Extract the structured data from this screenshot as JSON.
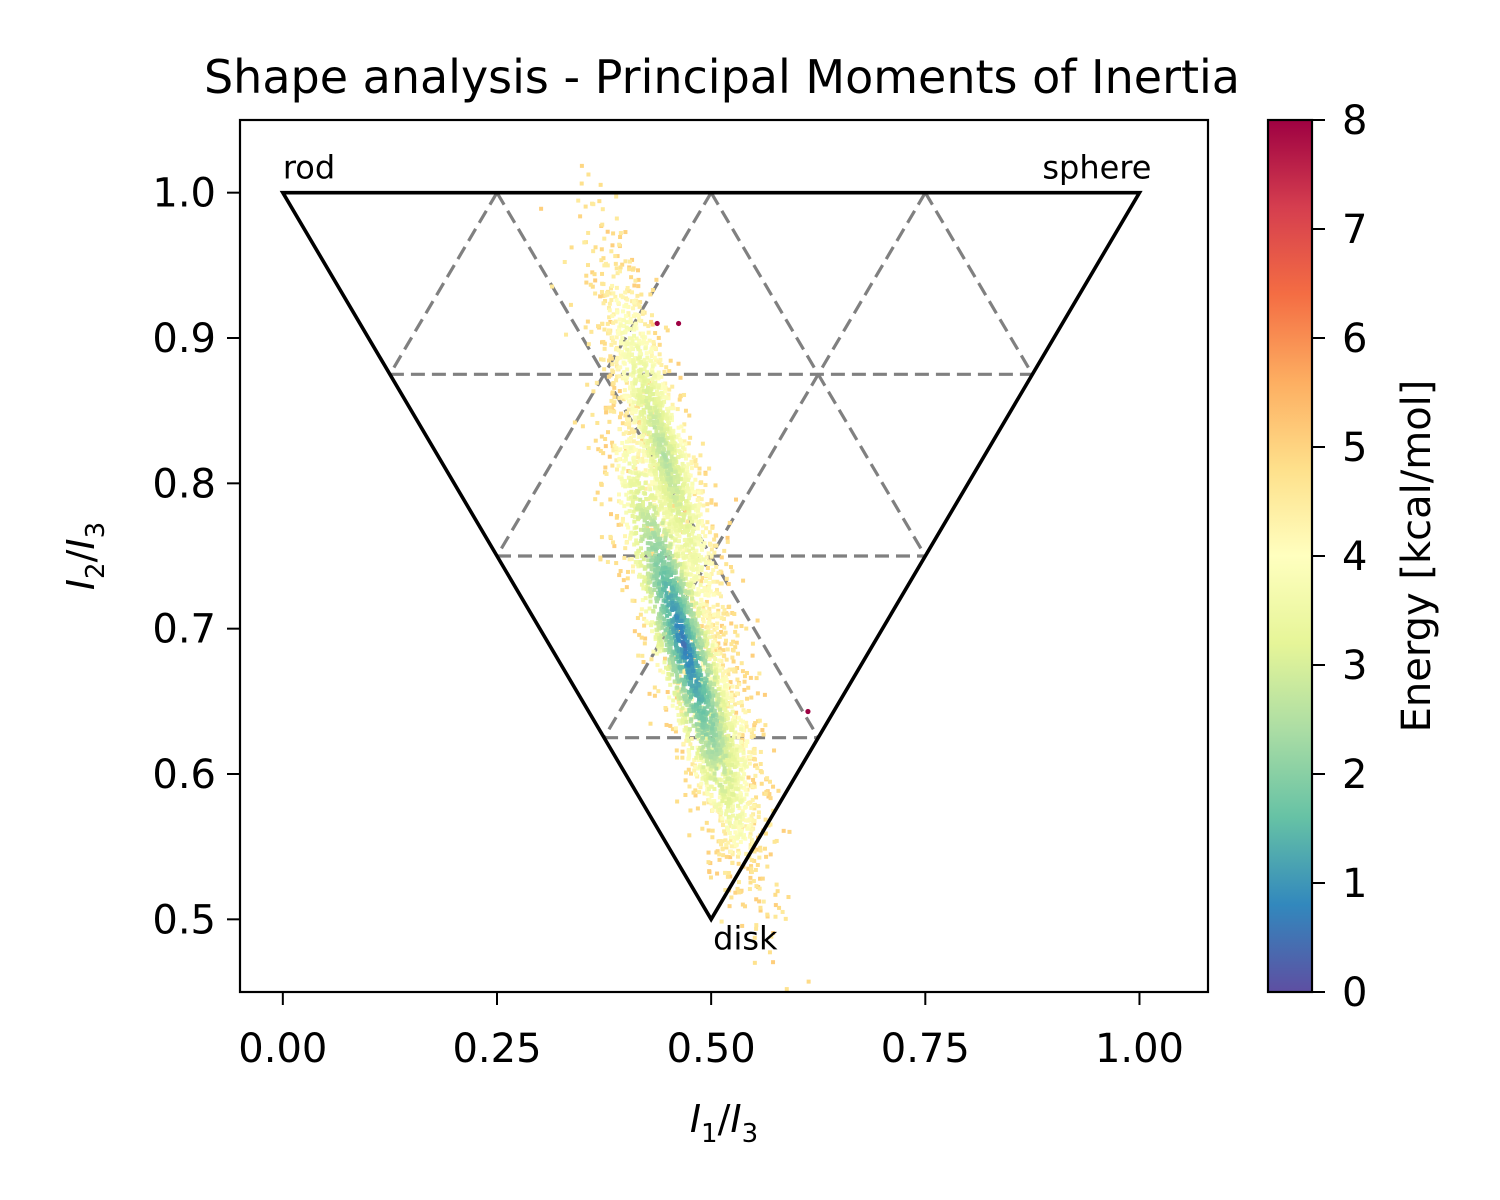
{
  "chart_data": {
    "type": "scatter",
    "title": "Shape analysis - Principal Moments of Inertia",
    "xlabel": {
      "base": "I",
      "sub": "1",
      "sep": "/",
      "base2": "I",
      "sub2": "3"
    },
    "ylabel": {
      "base": "I",
      "sub": "2",
      "sep": "/",
      "base2": "I",
      "sub2": "3"
    },
    "xlim": [
      -0.05,
      1.08
    ],
    "ylim": [
      0.45,
      1.05
    ],
    "xticks": [
      0.0,
      0.25,
      0.5,
      0.75,
      1.0
    ],
    "xtick_labels": [
      "0.00",
      "0.25",
      "0.50",
      "0.75",
      "1.00"
    ],
    "yticks": [
      0.5,
      0.6,
      0.7,
      0.8,
      0.9,
      1.0
    ],
    "ytick_labels": [
      "0.5",
      "0.6",
      "0.7",
      "0.8",
      "0.9",
      "1.0"
    ],
    "grid": false,
    "triangle": [
      [
        0,
        1
      ],
      [
        1,
        1
      ],
      [
        0.5,
        0.5
      ]
    ],
    "corner_labels": [
      {
        "text": "rod",
        "x": 0.0,
        "y": 1.0
      },
      {
        "text": "sphere",
        "x": 1.0,
        "y": 1.0
      },
      {
        "text": "disk",
        "x": 0.5,
        "y": 0.5
      }
    ],
    "guide_lines_style": "dashed grey",
    "colorbar": {
      "label": "Energy [kcal/mol]",
      "min": 0,
      "max": 8,
      "ticks": [
        0,
        1,
        2,
        3,
        4,
        5,
        6,
        7,
        8
      ],
      "tick_labels": [
        "0",
        "1",
        "2",
        "3",
        "4",
        "5",
        "6",
        "7",
        "8"
      ],
      "colormap": "Spectral_r",
      "colors": [
        "#5e4fa2",
        "#3288bd",
        "#66c2a5",
        "#abdda4",
        "#e6f598",
        "#ffffbf",
        "#fee08b",
        "#fdae61",
        "#f46d43",
        "#d53e4f",
        "#9e0142"
      ]
    },
    "point_clusters": [
      {
        "center": [
          0.468,
          0.69
        ],
        "spread_along": 0.085,
        "spread_across": 0.018,
        "energy_center": 0.6,
        "energy_edge": 4.8
      },
      {
        "center": [
          0.445,
          0.82
        ],
        "spread_along": 0.075,
        "spread_across": 0.016,
        "energy_center": 2.6,
        "energy_edge": 4.8
      },
      {
        "center": [
          0.51,
          0.625
        ],
        "spread_along": 0.04,
        "spread_across": 0.02,
        "energy_center": 2.8,
        "energy_edge": 4.8
      }
    ],
    "outliers": [
      {
        "x": 0.437,
        "y": 0.91,
        "energy": 8
      },
      {
        "x": 0.462,
        "y": 0.91,
        "energy": 8
      },
      {
        "x": 0.613,
        "y": 0.643,
        "energy": 8
      }
    ]
  }
}
